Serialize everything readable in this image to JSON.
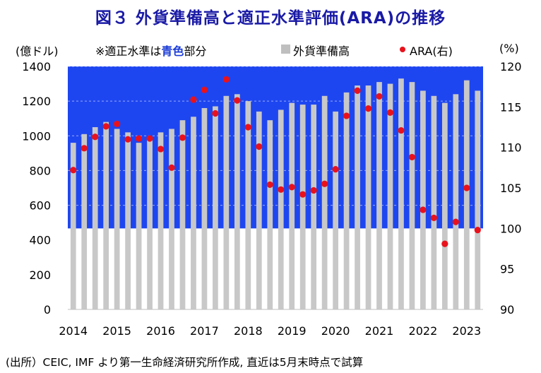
{
  "header": {
    "title": "図３ 外貨準備高と適正水準評価(ARA)の推移"
  },
  "legend": {
    "left_unit": "(億ドル)",
    "note_prefix": "※適正水準は",
    "note_blue": "青色",
    "note_suffix": "部分",
    "bar_label": "外貨準備高",
    "dot_label": "ARA(右)",
    "right_unit": "(%)"
  },
  "footer": {
    "source": "(出所）CEIC, IMF より第一生命経済研究所作成, 直近は5月末時点で試算"
  },
  "colors": {
    "blue_zone": "#1e46f0",
    "bar": "#c8c8c8",
    "dot": "#e8121c",
    "title": "#1a1aa6"
  },
  "chart_data": {
    "type": "bar+scatter",
    "title": "外貨準備高と適正水準評価(ARA)の推移",
    "xlabel": "",
    "ylabel_left": "(億ドル)",
    "ylabel_right": "(%)",
    "ylim_left": [
      0,
      1400
    ],
    "ylim_right": [
      90,
      120
    ],
    "yticks_left": [
      0,
      200,
      400,
      600,
      800,
      1000,
      1200,
      1400
    ],
    "yticks_right": [
      90,
      95,
      100,
      105,
      110,
      115,
      120
    ],
    "adequacy_zone_right": [
      100,
      120
    ],
    "year_labels": [
      "2014",
      "2015",
      "2016",
      "2017",
      "2018",
      "2019",
      "2020",
      "2021",
      "2022",
      "2023"
    ],
    "series": [
      {
        "name": "外貨準備高",
        "axis": "left",
        "values": [
          960,
          1010,
          1050,
          1080,
          1040,
          1020,
          960,
          990,
          1020,
          1040,
          1090,
          1110,
          1160,
          1170,
          1230,
          1240,
          1200,
          1140,
          1090,
          1150,
          1190,
          1180,
          1180,
          1230,
          1140,
          1250,
          1290,
          1290,
          1310,
          1300,
          1330,
          1310,
          1260,
          1230,
          1190,
          1240,
          1320,
          1260
        ]
      },
      {
        "name": "ARA(右)",
        "axis": "right",
        "values": [
          107.2,
          109.9,
          111.3,
          112.6,
          112.9,
          111.0,
          111.1,
          111.1,
          109.8,
          107.5,
          111.2,
          115.9,
          117.1,
          114.2,
          118.4,
          115.8,
          112.5,
          110.1,
          105.4,
          104.8,
          105.1,
          104.2,
          104.7,
          105.5,
          107.3,
          113.9,
          117.0,
          114.8,
          116.3,
          114.3,
          112.1,
          108.8,
          102.3,
          101.3,
          98.1,
          100.8,
          105.0,
          99.8
        ]
      }
    ]
  }
}
